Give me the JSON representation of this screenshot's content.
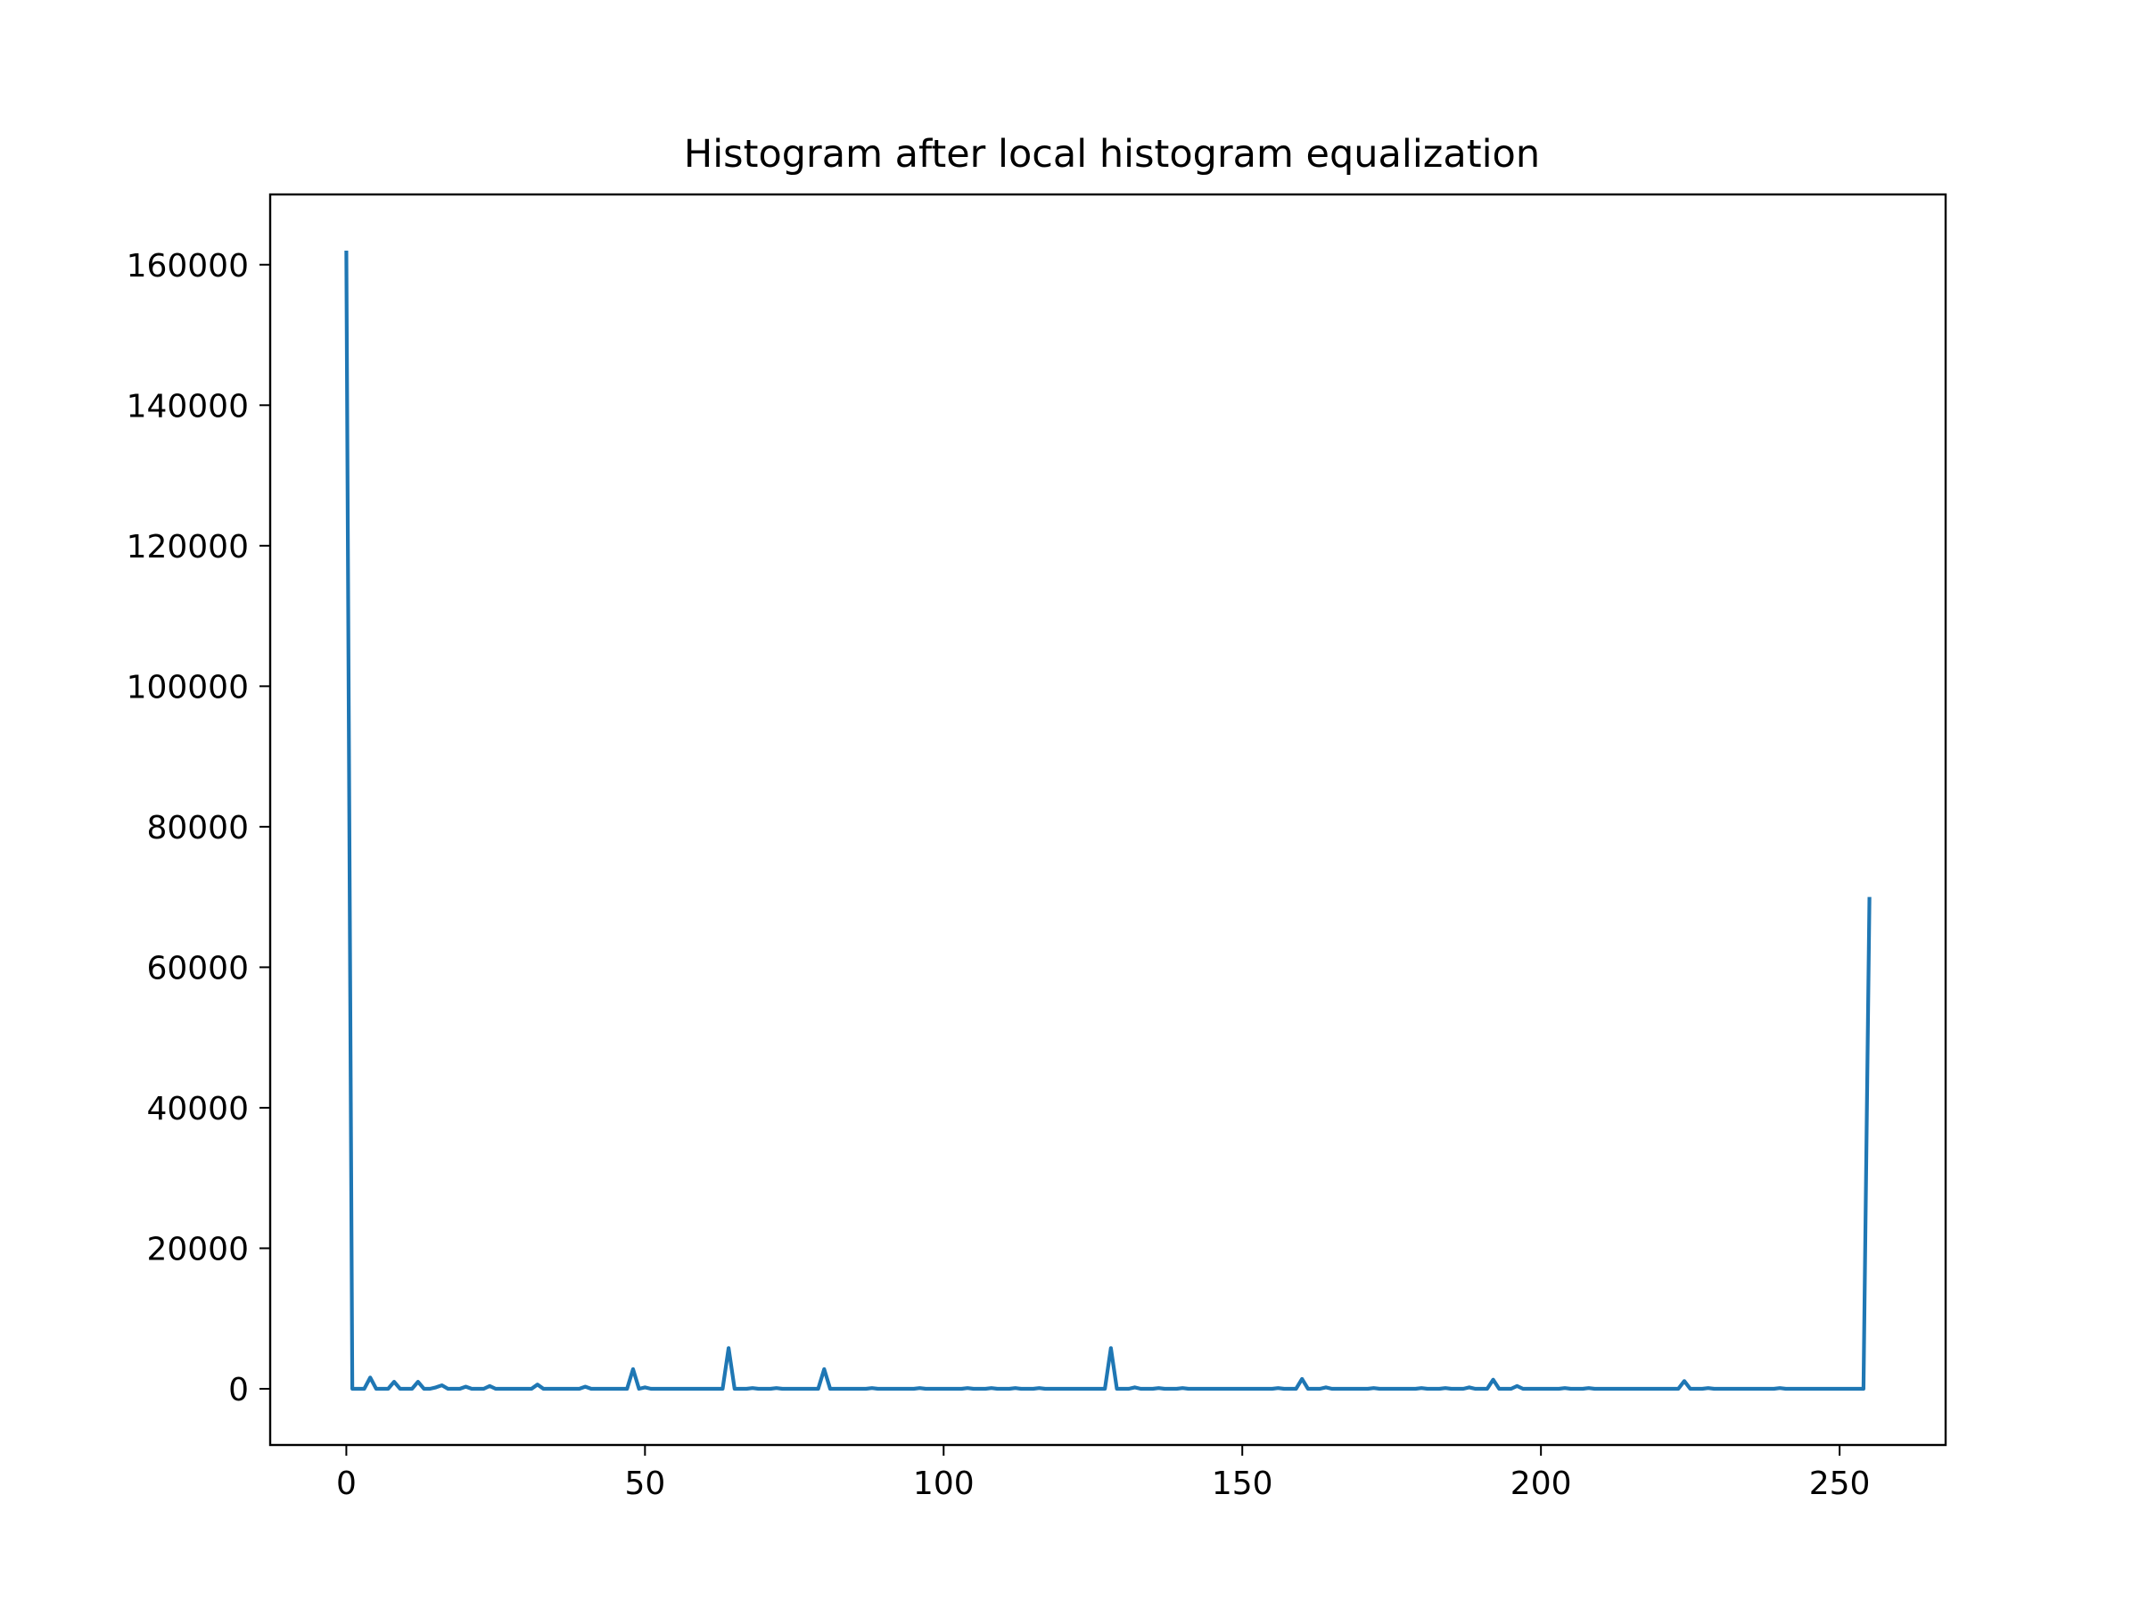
{
  "chart_data": {
    "type": "line",
    "title": "Histogram after local histogram equalization",
    "xlabel": "",
    "ylabel": "",
    "xlim": [
      -12.75,
      267.75
    ],
    "ylim": [
      -8000,
      170000
    ],
    "x_ticks": [
      0,
      50,
      100,
      150,
      200,
      250
    ],
    "y_ticks": [
      0,
      20000,
      40000,
      60000,
      80000,
      100000,
      120000,
      140000,
      160000
    ],
    "grid": false,
    "legend": "none",
    "series": [
      {
        "color": "#1f77b4",
        "x": [
          0,
          1,
          2,
          3,
          4,
          5,
          6,
          7,
          8,
          9,
          10,
          11,
          12,
          13,
          14,
          15,
          16,
          17,
          18,
          19,
          20,
          21,
          22,
          23,
          24,
          25,
          26,
          27,
          28,
          29,
          30,
          31,
          32,
          33,
          34,
          35,
          36,
          37,
          38,
          39,
          40,
          41,
          42,
          43,
          44,
          45,
          46,
          47,
          48,
          49,
          50,
          51,
          52,
          53,
          54,
          55,
          56,
          57,
          58,
          59,
          60,
          61,
          62,
          63,
          64,
          65,
          66,
          67,
          68,
          69,
          70,
          71,
          72,
          73,
          74,
          75,
          76,
          77,
          78,
          79,
          80,
          81,
          82,
          83,
          84,
          85,
          86,
          87,
          88,
          89,
          90,
          91,
          92,
          93,
          94,
          95,
          96,
          97,
          98,
          99,
          100,
          101,
          102,
          103,
          104,
          105,
          106,
          107,
          108,
          109,
          110,
          111,
          112,
          113,
          114,
          115,
          116,
          117,
          118,
          119,
          120,
          121,
          122,
          123,
          124,
          125,
          126,
          127,
          128,
          129,
          130,
          131,
          132,
          133,
          134,
          135,
          136,
          137,
          138,
          139,
          140,
          141,
          142,
          143,
          144,
          145,
          146,
          147,
          148,
          149,
          150,
          151,
          152,
          153,
          154,
          155,
          156,
          157,
          158,
          159,
          160,
          161,
          162,
          163,
          164,
          165,
          166,
          167,
          168,
          169,
          170,
          171,
          172,
          173,
          174,
          175,
          176,
          177,
          178,
          179,
          180,
          181,
          182,
          183,
          184,
          185,
          186,
          187,
          188,
          189,
          190,
          191,
          192,
          193,
          194,
          195,
          196,
          197,
          198,
          199,
          200,
          201,
          202,
          203,
          204,
          205,
          206,
          207,
          208,
          209,
          210,
          211,
          212,
          213,
          214,
          215,
          216,
          217,
          218,
          219,
          220,
          221,
          222,
          223,
          224,
          225,
          226,
          227,
          228,
          229,
          230,
          231,
          232,
          233,
          234,
          235,
          236,
          237,
          238,
          239,
          240,
          241,
          242,
          243,
          244,
          245,
          246,
          247,
          248,
          249,
          250,
          251,
          252,
          253,
          254,
          255
        ],
        "values": [
          162000,
          0,
          0,
          0,
          1600,
          0,
          0,
          0,
          1000,
          0,
          0,
          0,
          1000,
          0,
          0,
          200,
          500,
          0,
          0,
          0,
          300,
          0,
          0,
          0,
          400,
          0,
          0,
          0,
          0,
          0,
          0,
          0,
          600,
          0,
          0,
          0,
          0,
          0,
          0,
          0,
          300,
          0,
          0,
          0,
          0,
          0,
          0,
          0,
          2800,
          0,
          200,
          0,
          0,
          0,
          0,
          0,
          0,
          0,
          0,
          0,
          0,
          0,
          0,
          0,
          5800,
          0,
          0,
          0,
          100,
          0,
          0,
          0,
          100,
          0,
          0,
          0,
          0,
          0,
          0,
          0,
          2800,
          0,
          0,
          0,
          0,
          0,
          0,
          0,
          100,
          0,
          0,
          0,
          0,
          0,
          0,
          0,
          100,
          0,
          0,
          0,
          0,
          0,
          0,
          0,
          100,
          0,
          0,
          0,
          100,
          0,
          0,
          0,
          100,
          0,
          0,
          0,
          100,
          0,
          0,
          0,
          0,
          0,
          0,
          0,
          0,
          0,
          0,
          0,
          5800,
          0,
          0,
          0,
          200,
          0,
          0,
          0,
          100,
          0,
          0,
          0,
          100,
          0,
          0,
          0,
          0,
          0,
          0,
          0,
          0,
          0,
          0,
          0,
          0,
          0,
          0,
          0,
          100,
          0,
          0,
          0,
          1400,
          0,
          0,
          0,
          200,
          0,
          0,
          0,
          0,
          0,
          0,
          0,
          100,
          0,
          0,
          0,
          0,
          0,
          0,
          0,
          100,
          0,
          0,
          0,
          100,
          0,
          0,
          0,
          200,
          0,
          0,
          0,
          1300,
          0,
          0,
          0,
          400,
          0,
          0,
          0,
          0,
          0,
          0,
          0,
          100,
          0,
          0,
          0,
          100,
          0,
          0,
          0,
          0,
          0,
          0,
          0,
          0,
          0,
          0,
          0,
          0,
          0,
          0,
          0,
          1100,
          0,
          0,
          0,
          100,
          0,
          0,
          0,
          0,
          0,
          0,
          0,
          0,
          0,
          0,
          0,
          100,
          0,
          0,
          0,
          0,
          0,
          0,
          0,
          0,
          0,
          0,
          0,
          0,
          0,
          0,
          70000
        ]
      }
    ]
  }
}
